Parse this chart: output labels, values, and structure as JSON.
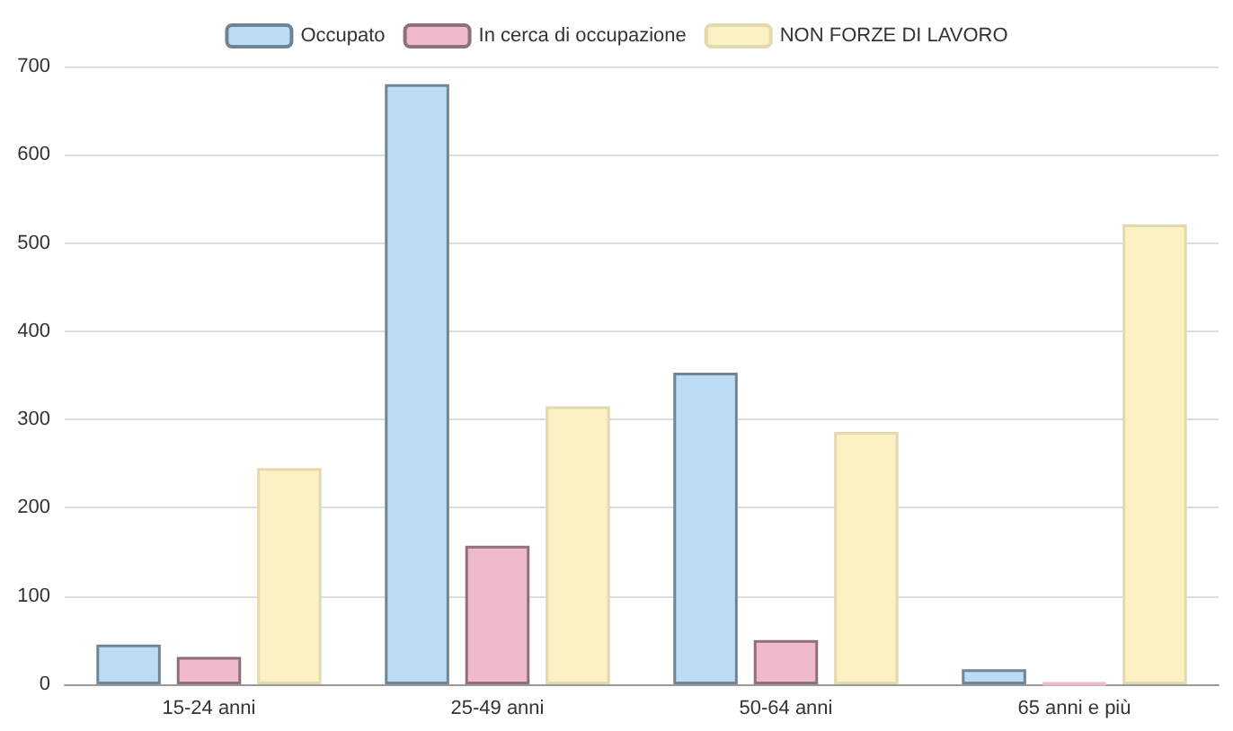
{
  "chart_data": {
    "type": "bar",
    "categories": [
      "15-24 anni",
      "25-49 anni",
      "50-64 anni",
      "65 anni e più"
    ],
    "series": [
      {
        "name": "Occupato",
        "color": "#bcdcf6",
        "values": [
          45,
          680,
          353,
          17
        ]
      },
      {
        "name": "In cerca di occupazione",
        "color": "#eebacc",
        "values": [
          31,
          157,
          50,
          1
        ]
      },
      {
        "name": "NON FORZE DI LAVORO",
        "color": "#fcf1c2",
        "values": [
          245,
          315,
          286,
          521
        ]
      }
    ],
    "ylim": [
      0,
      700
    ],
    "yticks": [
      0,
      100,
      200,
      300,
      400,
      500,
      600,
      700
    ],
    "grid": "y",
    "legend": "top"
  }
}
